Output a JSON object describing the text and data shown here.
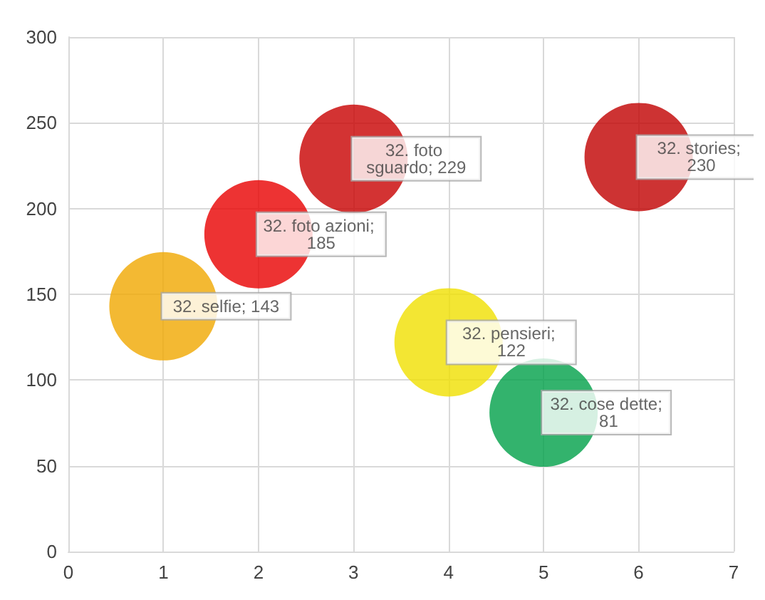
{
  "chart_data": {
    "type": "bubble",
    "x": [
      1,
      2,
      3,
      4,
      5,
      6
    ],
    "values": [
      143,
      185,
      229,
      122,
      81,
      230
    ],
    "sizes": [
      1,
      1,
      1,
      1,
      1,
      1
    ],
    "colors": [
      "#f0a800",
      "#e80000",
      "#c80000",
      "#f0e000",
      "#00a048",
      "#c00000"
    ],
    "value_labels": [
      "32. selfie; 143",
      "32. foto azioni; 185",
      "32. foto sguardo; 229",
      "32. pensieri; 122",
      "32. cose dette; 81",
      "32. stories; 230"
    ],
    "xlim": [
      0,
      7
    ],
    "xticks": [
      0,
      1,
      2,
      3,
      4,
      5,
      6,
      7
    ],
    "ylim": [
      0,
      300
    ],
    "yticks": [
      0,
      50,
      100,
      150,
      200,
      250,
      300
    ],
    "grid": true,
    "marker": "circle"
  }
}
